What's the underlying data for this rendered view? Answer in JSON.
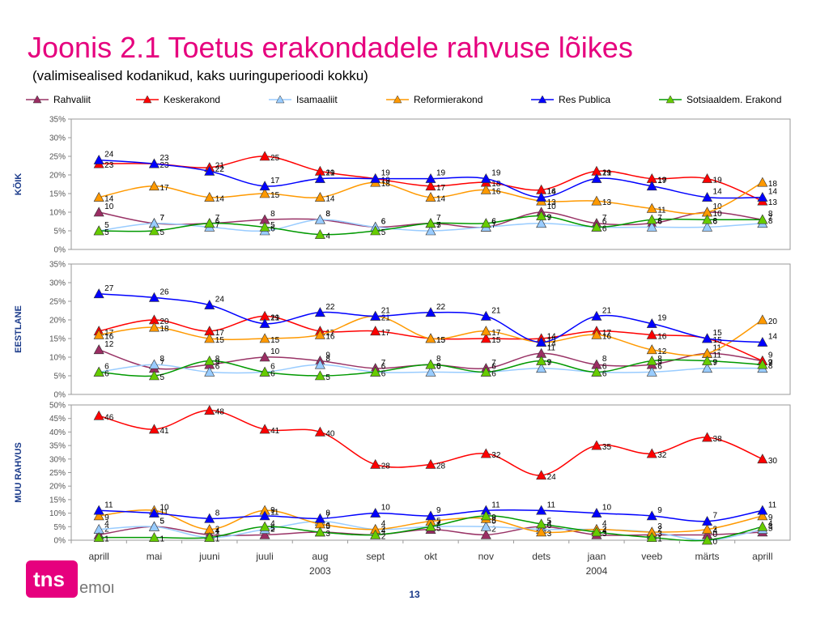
{
  "title": "Joonis 2.1 Toetus erakondadele rahvuse lõikes",
  "subtitle": "(valimisealised kodanikud, kaks uuringuperioodi kokku)",
  "page_number": "13",
  "logo": {
    "text": "tns",
    "subtext": "emor",
    "color": "#e6007e"
  },
  "chart_data": {
    "type": "line",
    "categories": [
      "aprill",
      "mai",
      "juuni",
      "juuli",
      "aug",
      "sept",
      "okt",
      "nov",
      "dets",
      "jaan",
      "veeb",
      "märts",
      "aprill"
    ],
    "year_labels": [
      {
        "text": "2003",
        "index": 4
      },
      {
        "text": "2004",
        "index": 9
      }
    ],
    "series": [
      {
        "name": "Rahvaliit",
        "color": "#993366",
        "marker": "#9b2d63"
      },
      {
        "name": "Keskerakond",
        "color": "#ff0000",
        "marker": "#ff0000"
      },
      {
        "name": "Isamaaliit",
        "color": "#99ccff",
        "marker": "#99ccff"
      },
      {
        "name": "Reformierakond",
        "color": "#ff9900",
        "marker": "#ff9900"
      },
      {
        "name": "Res Publica",
        "color": "#0000ff",
        "marker": "#0000ff"
      },
      {
        "name": "Sotsiaaldem. Erakond",
        "color": "#009900",
        "marker": "#66cc00"
      }
    ],
    "panels": [
      {
        "label": "KÕIK",
        "ylim": [
          0,
          35
        ],
        "yticks": [
          "0%",
          "5%",
          "10%",
          "15%",
          "20%",
          "25%",
          "30%",
          "35%"
        ],
        "values": {
          "Rahvaliit": [
            10,
            7,
            7,
            8,
            8,
            6,
            7,
            6,
            10,
            7,
            7,
            10,
            8
          ],
          "Keskerakond": [
            23,
            23,
            22,
            25,
            21,
            19,
            17,
            18,
            16,
            21,
            19,
            19,
            13
          ],
          "Isamaaliit": [
            5,
            7,
            6,
            5,
            8,
            6,
            5,
            6,
            7,
            6,
            6,
            6,
            7
          ],
          "Reformierakond": [
            14,
            17,
            14,
            15,
            14,
            18,
            14,
            16,
            13,
            13,
            11,
            10,
            18
          ],
          "Res Publica": [
            24,
            23,
            21,
            17,
            19,
            19,
            19,
            19,
            14,
            19,
            17,
            14,
            14
          ],
          "Sotsiaaldem. Erakond": [
            5,
            5,
            7,
            6,
            4,
            5,
            7,
            7,
            9,
            6,
            8,
            8,
            8
          ]
        }
      },
      {
        "label": "EESTLANE",
        "ylim": [
          0,
          35
        ],
        "yticks": [
          "0%",
          "5%",
          "10%",
          "15%",
          "20%",
          "25%",
          "30%",
          "35%"
        ],
        "values": {
          "Rahvaliit": [
            12,
            7,
            8,
            10,
            9,
            7,
            8,
            7,
            11,
            8,
            8,
            11,
            9
          ],
          "Keskerakond": [
            17,
            20,
            17,
            21,
            17,
            17,
            15,
            15,
            15,
            17,
            16,
            15,
            9
          ],
          "Isamaaliit": [
            6,
            8,
            6,
            6,
            8,
            6,
            6,
            6,
            7,
            6,
            6,
            7,
            7
          ],
          "Reformierakond": [
            16,
            18,
            15,
            15,
            16,
            21,
            15,
            17,
            14,
            16,
            12,
            11,
            20
          ],
          "Res Publica": [
            27,
            26,
            24,
            19,
            22,
            21,
            22,
            21,
            14,
            21,
            19,
            15,
            14
          ],
          "Sotsiaaldem. Erakond": [
            6,
            5,
            9,
            6,
            5,
            6,
            8,
            6,
            9,
            6,
            9,
            9,
            8
          ]
        }
      },
      {
        "label": "MUU RAHVUS",
        "ylim": [
          0,
          50
        ],
        "yticks": [
          "0%",
          "5%",
          "10%",
          "15%",
          "20%",
          "25%",
          "30%",
          "35%",
          "40%",
          "45%",
          "50%"
        ],
        "values": {
          "Rahvaliit": [
            2,
            5,
            2,
            2,
            3,
            2,
            4,
            2,
            5,
            2,
            2,
            2,
            3
          ],
          "Keskerakond": [
            46,
            41,
            48,
            41,
            40,
            28,
            28,
            32,
            24,
            35,
            32,
            38,
            30
          ],
          "Isamaaliit": [
            4,
            5,
            1,
            4,
            7,
            4,
            5,
            5,
            4,
            4,
            3,
            0,
            4
          ],
          "Reformierakond": [
            9,
            11,
            4,
            11,
            6,
            4,
            7,
            8,
            3,
            4,
            3,
            4,
            9
          ],
          "Res Publica": [
            11,
            10,
            8,
            9,
            8,
            10,
            9,
            11,
            11,
            10,
            9,
            7,
            11
          ],
          "Sotsiaaldem. Erakond": [
            1,
            1,
            1,
            5,
            3,
            2,
            5,
            9,
            6,
            3,
            1,
            0,
            5
          ]
        }
      }
    ]
  }
}
